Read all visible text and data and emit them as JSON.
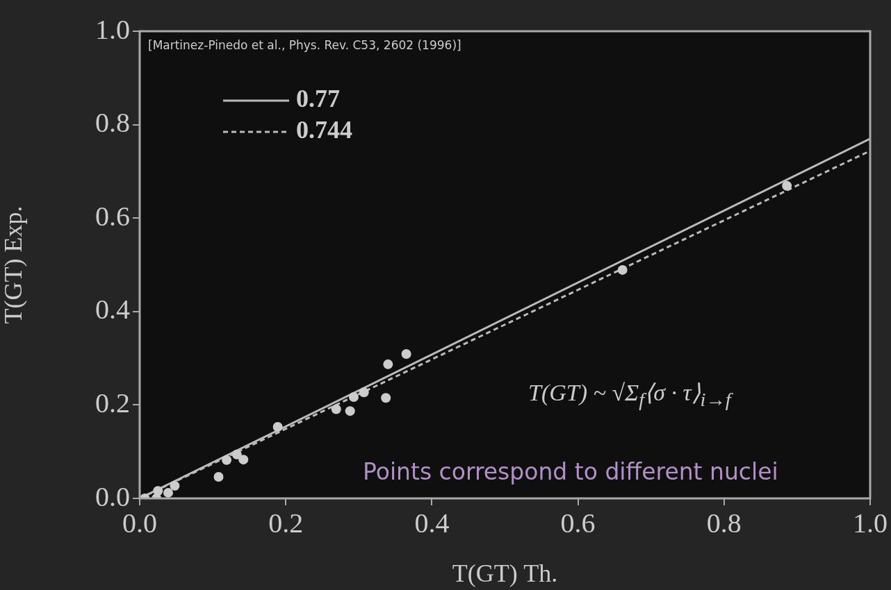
{
  "chart_data": {
    "type": "scatter",
    "xlabel": "T(GT) Th.",
    "ylabel": "T(GT) Exp.",
    "xlim": [
      0,
      1
    ],
    "ylim": [
      0,
      1
    ],
    "xticks": [
      {
        "value": 0,
        "label": "0.0"
      },
      {
        "value": 0.2,
        "label": "0.2"
      },
      {
        "value": 0.4,
        "label": "0.4"
      },
      {
        "value": 0.6,
        "label": "0.6"
      },
      {
        "value": 0.8,
        "label": "0.8"
      },
      {
        "value": 1,
        "label": "1.0"
      }
    ],
    "yticks": [
      {
        "value": 0,
        "label": "0.0"
      },
      {
        "value": 0.2,
        "label": "0.2"
      },
      {
        "value": 0.4,
        "label": "0.4"
      },
      {
        "value": 0.6,
        "label": "0.6"
      },
      {
        "value": 0.8,
        "label": "0.8"
      },
      {
        "value": 1,
        "label": "1.0"
      }
    ],
    "legend": "top left",
    "annotations": [
      "[Martinez-Pinedo et al., Phys. Rev. C53, 2602 (1996)]",
      "T(GT) ~ √Σ$_{f}$⟨σ · τ⟩$_{i→f}$",
      "Points correspond to different nuclei"
    ],
    "series": [
      {
        "color": "#cccccc",
        "marker": "circle",
        "x": [
          0.007,
          0.023,
          0.025,
          0.039,
          0.048,
          0.108,
          0.119,
          0.133,
          0.142,
          0.189,
          0.269,
          0.288,
          0.293,
          0.307,
          0.337,
          0.34,
          0.365,
          0.661,
          0.886
        ],
        "values": [
          0.0,
          0.0,
          0.016,
          0.012,
          0.027,
          0.046,
          0.082,
          0.094,
          0.083,
          0.153,
          0.191,
          0.187,
          0.217,
          0.227,
          0.215,
          0.287,
          0.309,
          0.489,
          0.669
        ]
      },
      {
        "type": "line",
        "name": "0.77",
        "color": "#bbbbbb",
        "marker": "none",
        "line_style": "solid",
        "x": [
          0,
          1
        ],
        "values": [
          0,
          0.77
        ]
      },
      {
        "type": "line",
        "name": "0.744",
        "color": "#bbbbbb",
        "marker": "none",
        "line_style": "dashed",
        "x": [
          0,
          1
        ],
        "values": [
          0,
          0.744
        ]
      }
    ]
  }
}
